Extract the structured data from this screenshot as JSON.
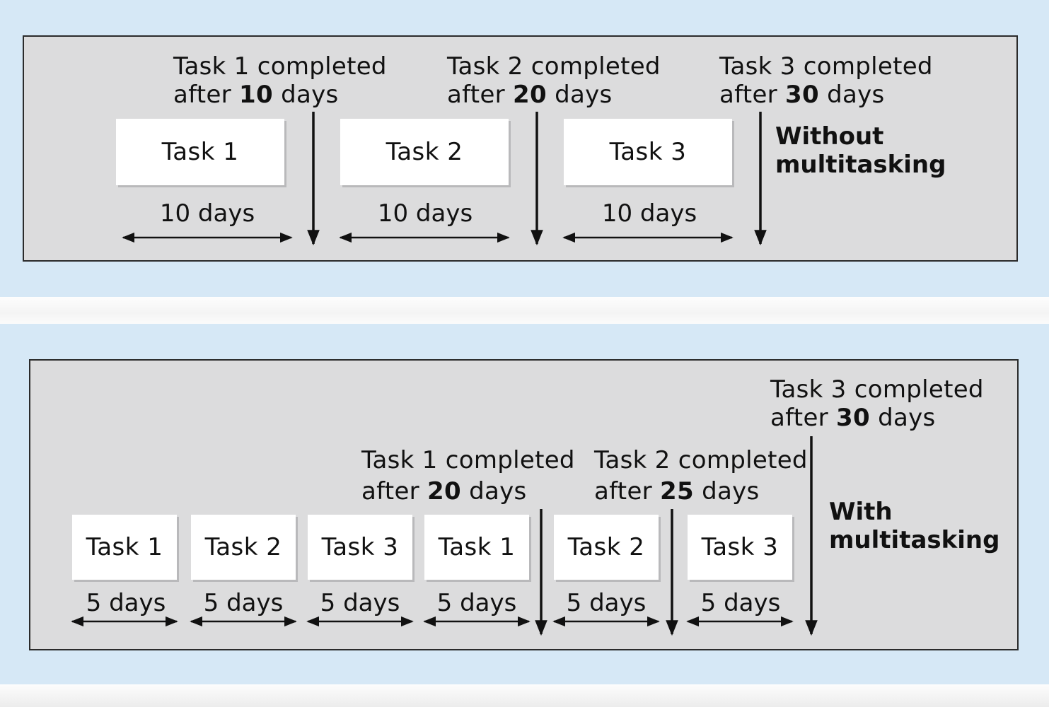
{
  "without": {
    "mode_label_line1": "Without",
    "mode_label_line2": "multitasking",
    "tasks": [
      {
        "label": "Task 1",
        "duration": "10 days"
      },
      {
        "label": "Task 2",
        "duration": "10 days"
      },
      {
        "label": "Task 3",
        "duration": "10 days"
      }
    ],
    "completions": [
      {
        "line1": "Task 1 completed",
        "prefix": "after ",
        "days": "10",
        "suffix": " days"
      },
      {
        "line1": "Task 2 completed",
        "prefix": "after ",
        "days": "20",
        "suffix": " days"
      },
      {
        "line1": "Task 3 completed",
        "prefix": "after ",
        "days": "30",
        "suffix": " days"
      }
    ]
  },
  "with": {
    "mode_label_line1": "With",
    "mode_label_line2": "multitasking",
    "tasks": [
      {
        "label": "Task 1",
        "duration": "5 days"
      },
      {
        "label": "Task 2",
        "duration": "5 days"
      },
      {
        "label": "Task 3",
        "duration": "5 days"
      },
      {
        "label": "Task 1",
        "duration": "5 days"
      },
      {
        "label": "Task 2",
        "duration": "5 days"
      },
      {
        "label": "Task 3",
        "duration": "5 days"
      }
    ],
    "completions": [
      {
        "line1": "Task 1 completed",
        "prefix": "after ",
        "days": "20",
        "suffix": " days"
      },
      {
        "line1": "Task 2 completed",
        "prefix": "after ",
        "days": "25",
        "suffix": " days"
      },
      {
        "line1": "Task 3 completed",
        "prefix": "after ",
        "days": "30",
        "suffix": " days"
      }
    ]
  },
  "colors": {
    "background_band": "#d6e8f6",
    "panel": "#dcdcdd",
    "box": "#ffffff",
    "ink": "#111111"
  }
}
